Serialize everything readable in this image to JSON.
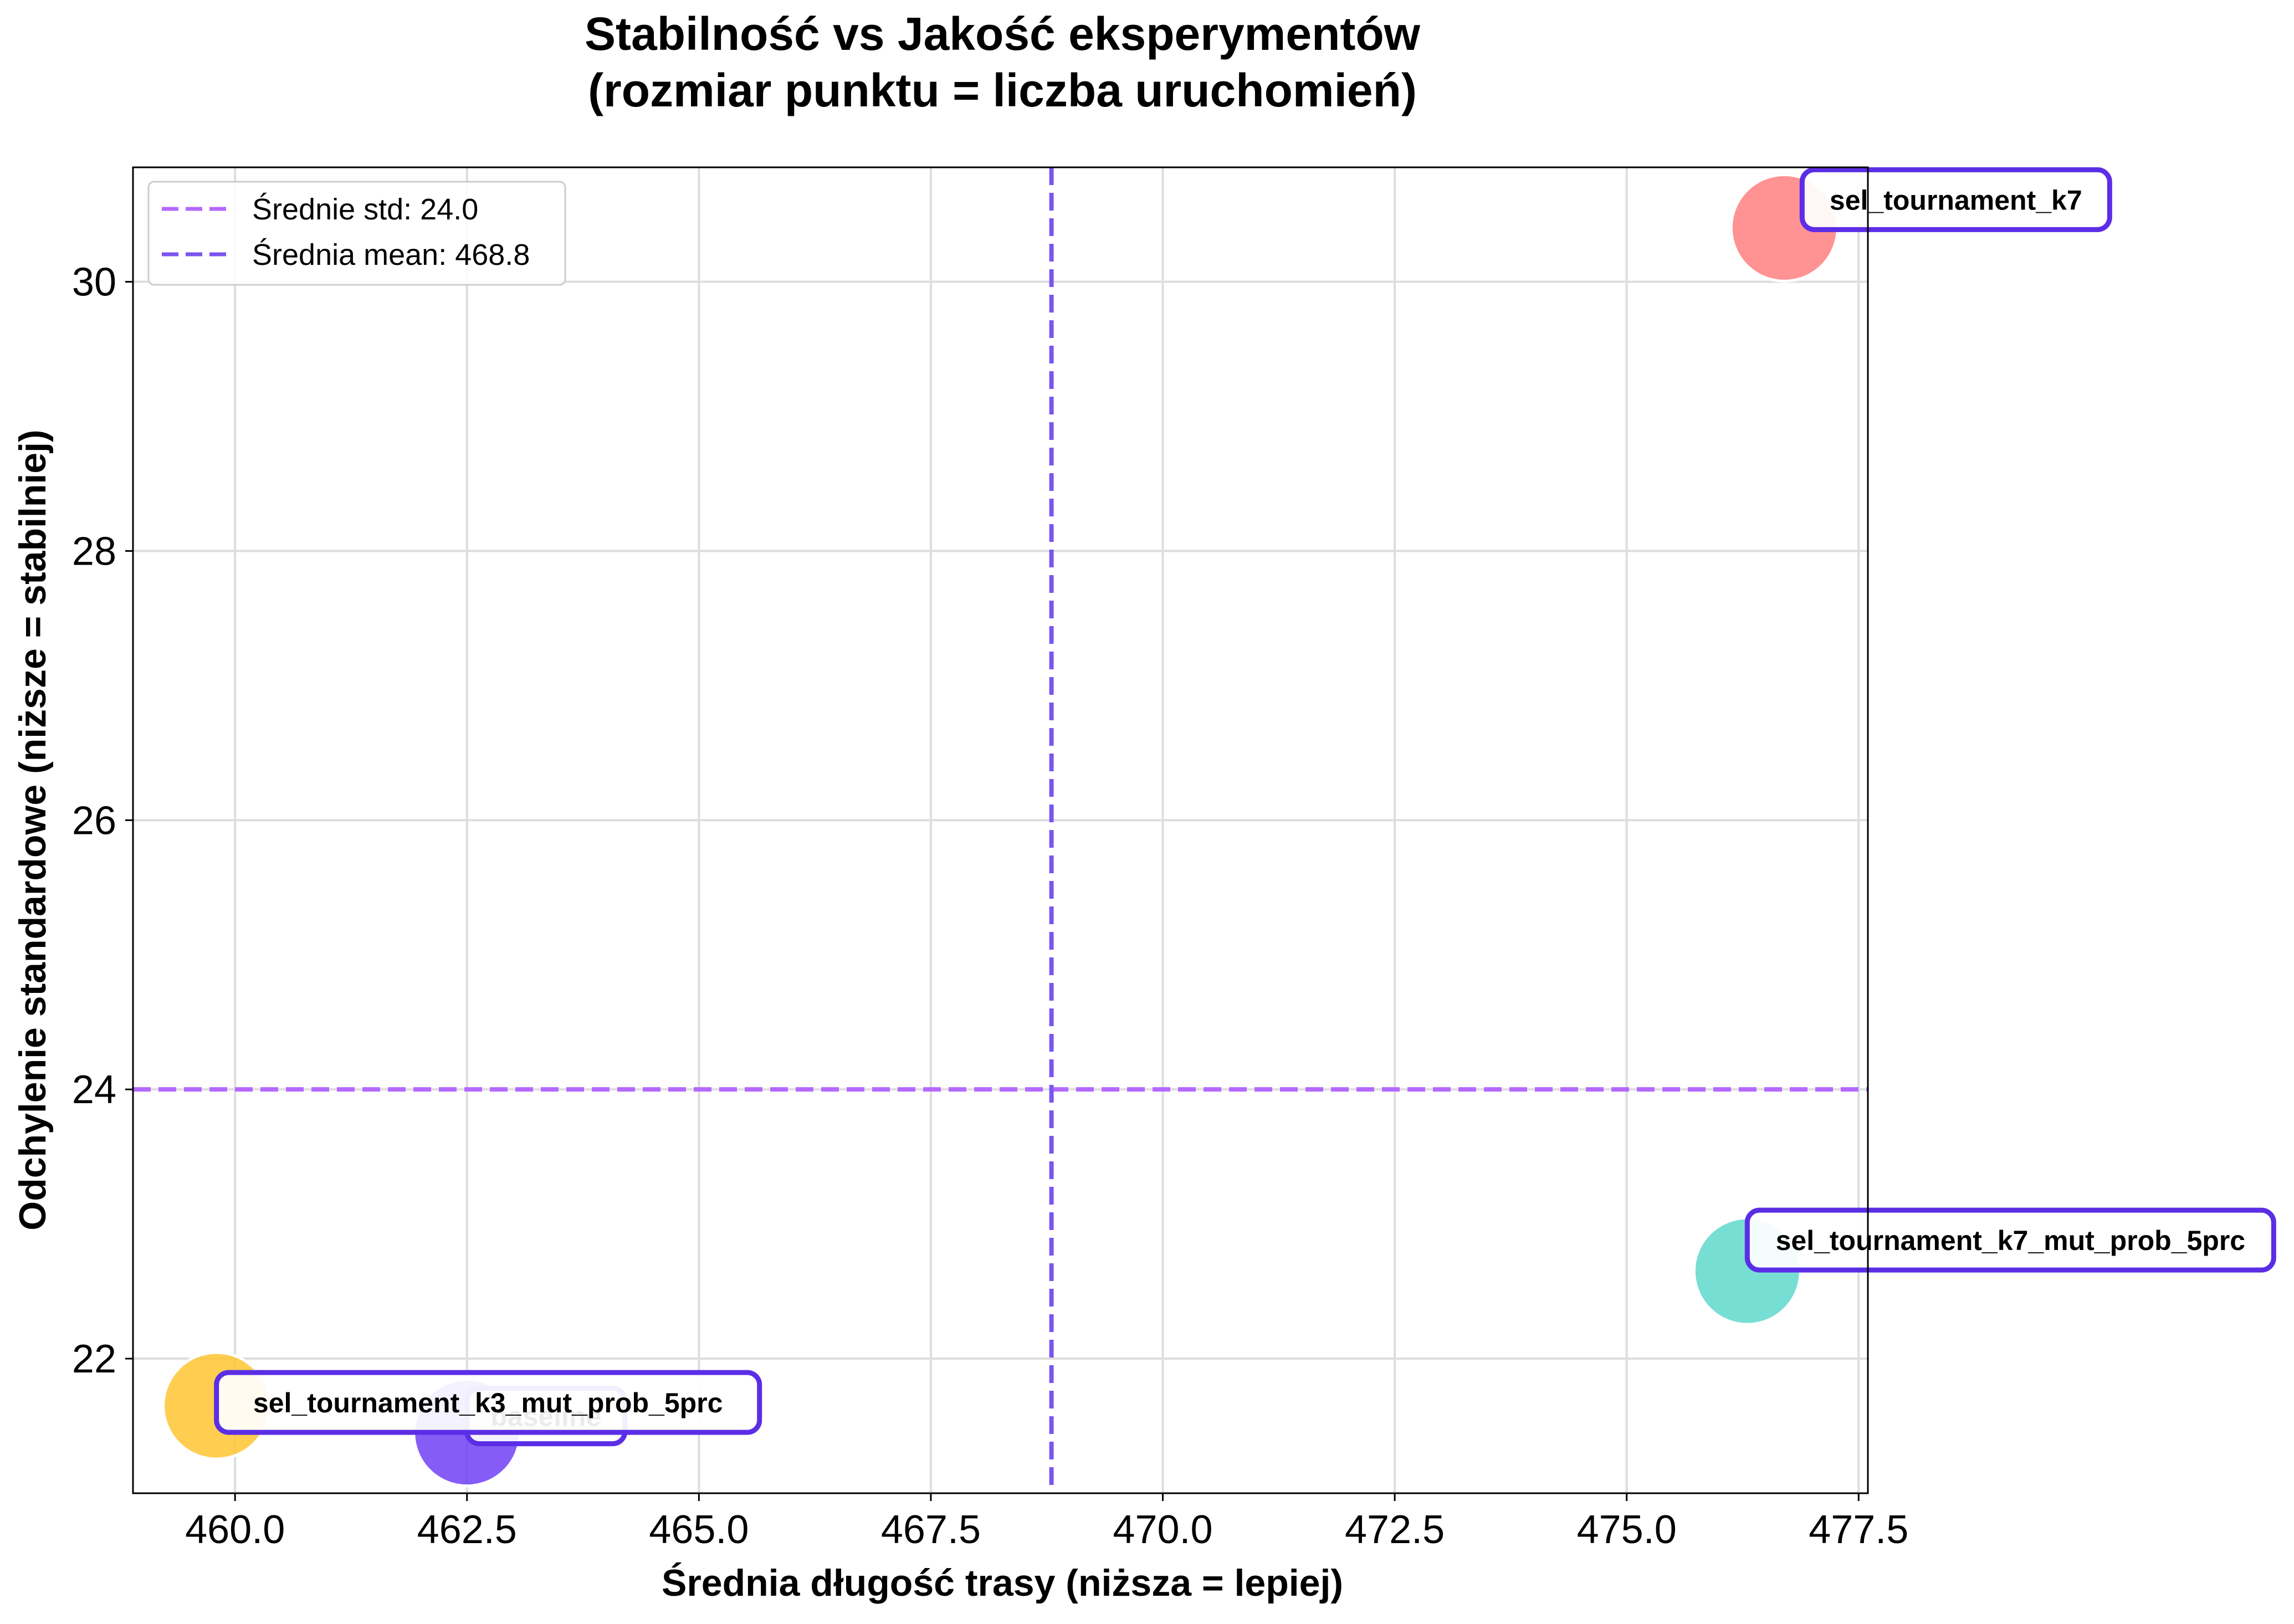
{
  "chart_data": {
    "type": "scatter",
    "title_lines": [
      "Stabilność vs Jakość eksperymentów",
      "(rozmiar punktu = liczba uruchomień)"
    ],
    "xlabel": "Średnia długość trasy (niższa = lepiej)",
    "ylabel": "Odchylenie standardowe (niższe = stabilniej)",
    "xlim": [
      458.9,
      477.6
    ],
    "ylim": [
      21.0,
      30.85
    ],
    "xticks": [
      460.0,
      462.5,
      465.0,
      467.5,
      470.0,
      472.5,
      475.0,
      477.5
    ],
    "xtick_labels": [
      "460.0",
      "462.5",
      "465.0",
      "467.5",
      "470.0",
      "472.5",
      "475.0",
      "477.5"
    ],
    "yticks": [
      22,
      24,
      26,
      28,
      30
    ],
    "ytick_labels": [
      "22",
      "24",
      "26",
      "28",
      "30"
    ],
    "grid": true,
    "legend_position": "top-left",
    "reference_lines": [
      {
        "orientation": "horizontal",
        "value": 24.0,
        "label": "Średnie std: 24.0",
        "color": "#b469ff"
      },
      {
        "orientation": "vertical",
        "value": 468.8,
        "label": "Średnia mean: 468.8",
        "color": "#7b55f0"
      }
    ],
    "points": [
      {
        "name": "sel_tournament_k7",
        "x": 476.7,
        "y": 30.4,
        "color": "#ff7f7f"
      },
      {
        "name": "sel_tournament_k7_mut_prob_5prc",
        "x": 476.3,
        "y": 22.65,
        "color": "#5fd8cd"
      },
      {
        "name": "sel_tournament_k3_mut_prob_5prc",
        "x": 459.8,
        "y": 21.65,
        "color": "#ffc533"
      },
      {
        "name": "baseline",
        "x": 462.5,
        "y": 21.45,
        "color": "#7040f5"
      }
    ]
  }
}
